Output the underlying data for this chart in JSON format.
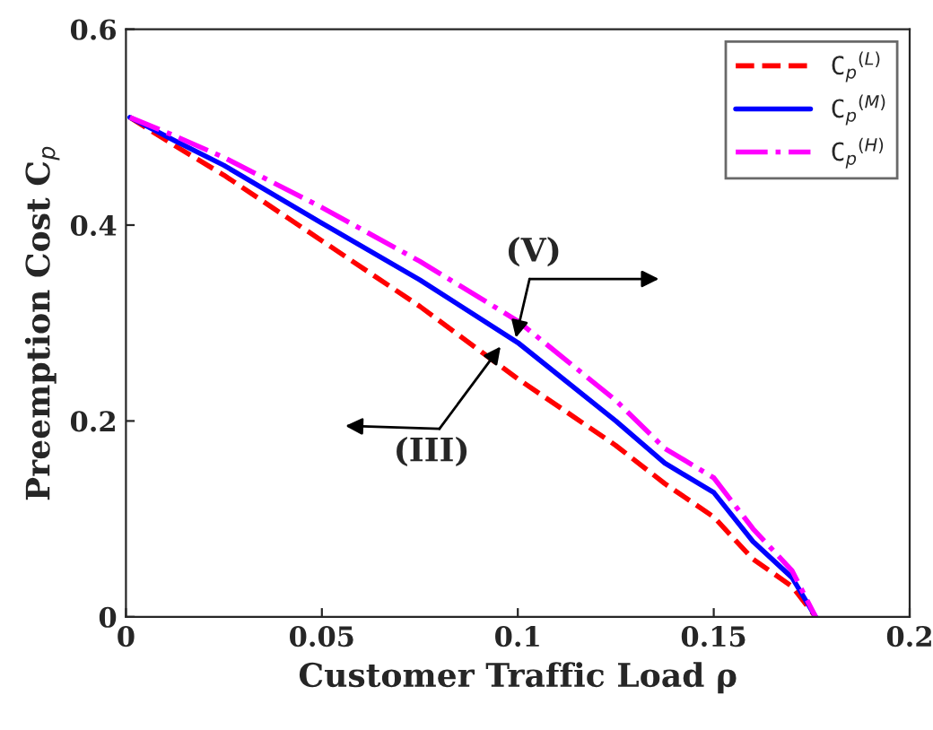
{
  "chart_data": {
    "type": "line",
    "xlabel": "Customer Traffic Load ρ",
    "ylabel": "Preemption Cost C$_{p}$",
    "xlim": [
      0,
      0.2
    ],
    "ylim": [
      0,
      0.6
    ],
    "xticks": [
      0,
      0.05,
      0.1,
      0.15,
      0.2
    ],
    "yticks": [
      0,
      0.2,
      0.4,
      0.6
    ],
    "x": [
      0.001,
      0.0125,
      0.025,
      0.05,
      0.075,
      0.1,
      0.125,
      0.1375,
      0.15,
      0.16,
      0.17,
      0.176
    ],
    "series": [
      {
        "name": "C$_{p}$$^{(L)}$",
        "color": "#ff0000",
        "line_style": "dashed",
        "values": [
          0.51,
          0.481,
          0.451,
          0.384,
          0.317,
          0.243,
          0.175,
          0.136,
          0.102,
          0.059,
          0.031,
          0
        ]
      },
      {
        "name": "C$_{p}$$^{(M)}$",
        "color": "#0000ff",
        "line_style": "solid",
        "values": [
          0.51,
          0.486,
          0.461,
          0.402,
          0.344,
          0.28,
          0.2,
          0.157,
          0.127,
          0.077,
          0.04,
          0
        ]
      },
      {
        "name": "C$_{p}$$^{(H)}$",
        "color": "#ff00ff",
        "line_style": "dashdot",
        "values": [
          0.51,
          0.491,
          0.469,
          0.418,
          0.363,
          0.302,
          0.221,
          0.172,
          0.142,
          0.09,
          0.047,
          0
        ]
      }
    ],
    "annotations": [
      {
        "text": "(V)",
        "x": 0.0995,
        "y": 0.285
      },
      "(III)"
    ],
    "legend": "top right",
    "grid": false,
    "marker": "none"
  }
}
